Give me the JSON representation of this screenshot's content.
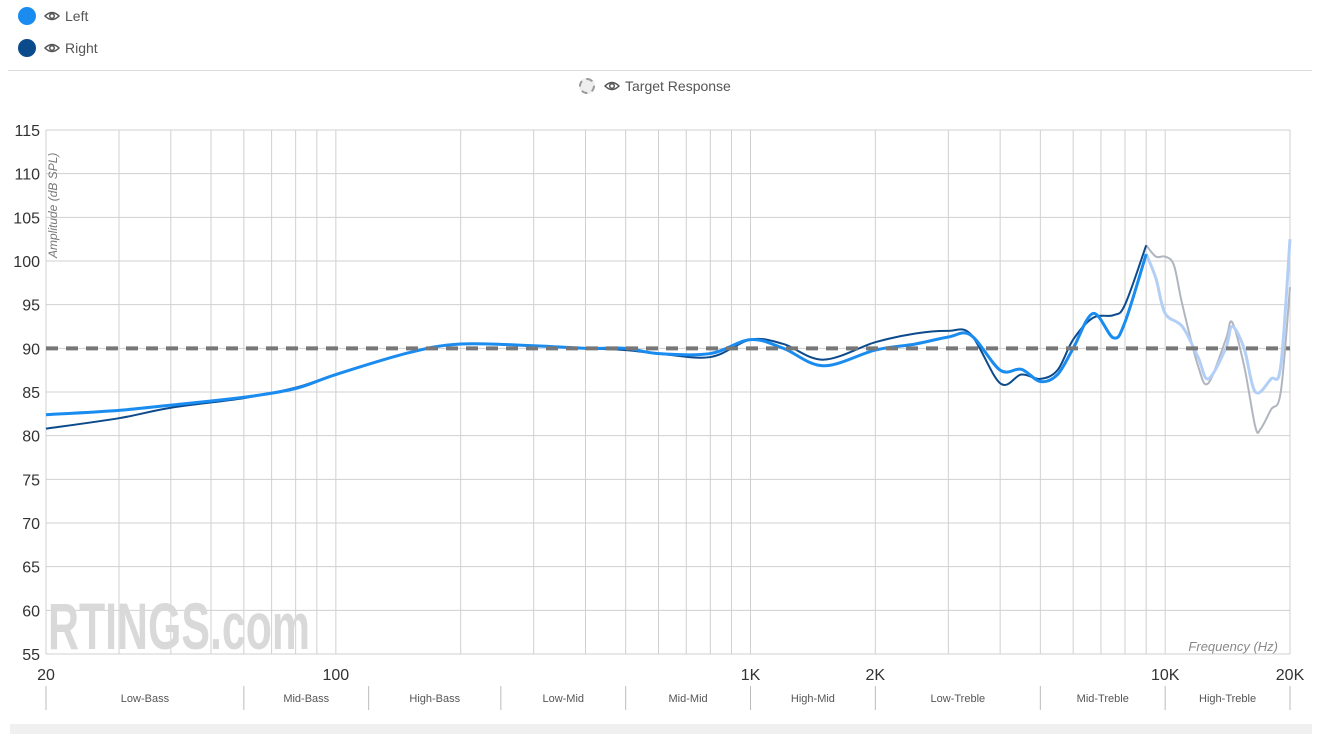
{
  "legend": {
    "items": [
      {
        "label": "Left",
        "color": "#1a8cf0",
        "icon": "eye-icon"
      },
      {
        "label": "Right",
        "color": "#0b4a8b",
        "icon": "eye-icon"
      }
    ],
    "target": {
      "label": "Target Response",
      "icon": "eye-icon"
    }
  },
  "watermark": "RTINGS.com",
  "chart_data": {
    "type": "line",
    "xlabel": "Frequency (Hz)",
    "ylabel": "Amplitude (dB SPL)",
    "xscale": "log",
    "xlim": [
      20,
      20000
    ],
    "ylim": [
      55,
      115
    ],
    "grid": true,
    "yticks": [
      "115",
      "110",
      "105",
      "100",
      "95",
      "90",
      "85",
      "80",
      "75",
      "70",
      "65",
      "60",
      "55"
    ],
    "xticks": [
      {
        "value": 20,
        "label": "20"
      },
      {
        "value": 100,
        "label": "100"
      },
      {
        "value": 1000,
        "label": "1K"
      },
      {
        "value": 2000,
        "label": "2K"
      },
      {
        "value": 10000,
        "label": "10K"
      },
      {
        "value": 20000,
        "label": "20K"
      }
    ],
    "bands": [
      {
        "label": "Low-Bass",
        "from": 20,
        "to": 60
      },
      {
        "label": "Mid-Bass",
        "from": 60,
        "to": 120
      },
      {
        "label": "High-Bass",
        "from": 120,
        "to": 250
      },
      {
        "label": "Low-Mid",
        "from": 250,
        "to": 500
      },
      {
        "label": "Mid-Mid",
        "from": 500,
        "to": 1000
      },
      {
        "label": "High-Mid",
        "from": 1000,
        "to": 2000
      },
      {
        "label": "Low-Treble",
        "from": 2000,
        "to": 5000
      },
      {
        "label": "Mid-Treble",
        "from": 5000,
        "to": 10000
      },
      {
        "label": "High-Treble",
        "from": 10000,
        "to": 20000
      }
    ],
    "target": {
      "name": "Target Response",
      "value": 90,
      "color": "#777777"
    },
    "fade_above_hz": 9200,
    "series": [
      {
        "name": "Left",
        "color": "#1a8cf0",
        "faded_color": "#b4cff5",
        "x": [
          20,
          30,
          40,
          60,
          80,
          100,
          150,
          200,
          300,
          400,
          500,
          600,
          800,
          1000,
          1200,
          1500,
          2000,
          2500,
          3000,
          3400,
          4000,
          4500,
          5000,
          5500,
          6000,
          6700,
          7500,
          8000,
          9000,
          9500,
          10000,
          11000,
          12000,
          12700,
          14000,
          14500,
          15500,
          16500,
          18000,
          19000,
          20000
        ],
        "y": [
          82.4,
          82.9,
          83.5,
          84.4,
          85.4,
          87,
          89.5,
          90.5,
          90.3,
          90,
          90,
          89.4,
          89.4,
          91,
          90,
          88,
          89.8,
          90.5,
          91.3,
          91.5,
          87.5,
          87.6,
          86.2,
          87,
          90,
          94,
          91.2,
          93,
          100.8,
          98,
          94,
          92.5,
          89,
          86.5,
          90,
          92.5,
          90,
          85,
          86.5,
          88,
          102.5
        ]
      },
      {
        "name": "Right",
        "color": "#0b4a8b",
        "faded_color": "#b0b5c0",
        "x": [
          20,
          30,
          40,
          60,
          80,
          100,
          150,
          200,
          300,
          400,
          500,
          600,
          800,
          1000,
          1200,
          1500,
          2000,
          2500,
          3000,
          3400,
          4000,
          4500,
          5000,
          5500,
          6000,
          6700,
          7500,
          8000,
          9000,
          9500,
          10000,
          10500,
          11000,
          12000,
          12700,
          14000,
          14500,
          15500,
          16500,
          17000,
          18000,
          19000,
          20000
        ],
        "y": [
          80.8,
          82,
          83.2,
          84.3,
          85.5,
          87,
          89.5,
          90.5,
          90.3,
          90,
          89.8,
          89.4,
          89,
          91,
          90.5,
          88.7,
          90.7,
          91.7,
          92,
          91.6,
          86,
          87,
          86.5,
          87.5,
          91,
          93.5,
          93.8,
          95,
          101.8,
          100.5,
          100.5,
          99.5,
          95,
          88,
          86,
          91,
          93,
          88,
          81,
          80.8,
          83,
          85,
          97
        ]
      }
    ]
  }
}
